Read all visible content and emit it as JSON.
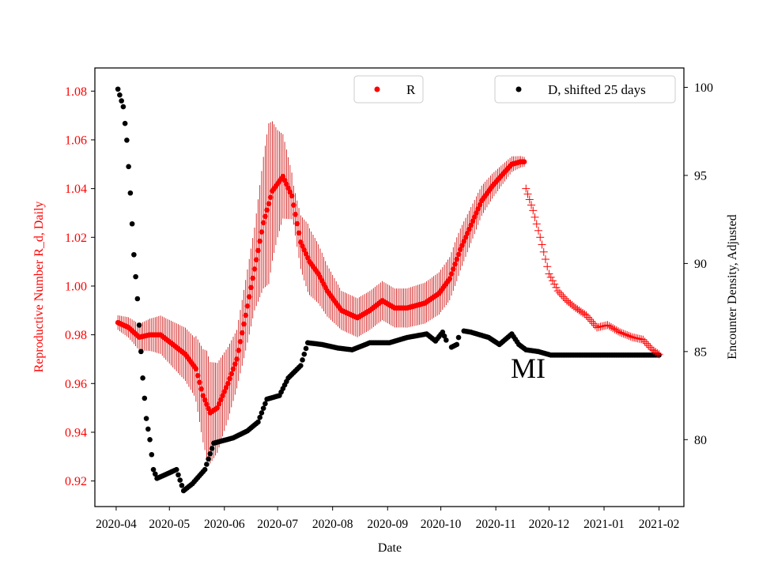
{
  "chart_data": {
    "type": "scatter",
    "xlabel": "Date",
    "ylabel_left": "Reproductive Number R_d, Daily",
    "ylabel_right": "Encounter Density, Adjusted",
    "annotation": "MI",
    "x_ticks": [
      "2020-04",
      "2020-05",
      "2020-06",
      "2020-07",
      "2020-08",
      "2020-09",
      "2020-10",
      "2020-11",
      "2020-12",
      "2021-01",
      "2021-02"
    ],
    "left_ticks": [
      "0.92",
      "0.94",
      "0.96",
      "0.98",
      "1.00",
      "1.02",
      "1.04",
      "1.06",
      "1.08"
    ],
    "right_ticks": [
      "80",
      "85",
      "90",
      "95",
      "100"
    ],
    "xlim": [
      "2020-03-20",
      "2021-02-15"
    ],
    "ylim_left": [
      0.9095,
      1.0895
    ],
    "ylim_right": [
      76.2,
      101.1
    ],
    "legend": {
      "R": "R",
      "D": "D, shifted 25 days"
    },
    "colors": {
      "R": "#ff0000",
      "R_errorbar": "#cc0000",
      "D": "#000000",
      "left_axis": "#ff0000",
      "right_axis": "#000000"
    },
    "R_anchors": [
      [
        "2020-04-02",
        0.985
      ],
      [
        "2020-04-08",
        0.983
      ],
      [
        "2020-04-14",
        0.979
      ],
      [
        "2020-04-20",
        0.98
      ],
      [
        "2020-04-26",
        0.98
      ],
      [
        "2020-05-03",
        0.976
      ],
      [
        "2020-05-10",
        0.972
      ],
      [
        "2020-05-16",
        0.966
      ],
      [
        "2020-05-20",
        0.955
      ],
      [
        "2020-05-24",
        0.948
      ],
      [
        "2020-05-28",
        0.95
      ],
      [
        "2020-06-03",
        0.96
      ],
      [
        "2020-06-08",
        0.97
      ],
      [
        "2020-06-13",
        0.988
      ],
      [
        "2020-06-18",
        1.007
      ],
      [
        "2020-06-23",
        1.026
      ],
      [
        "2020-06-28",
        1.039
      ],
      [
        "2020-07-04",
        1.045
      ],
      [
        "2020-07-09",
        1.037
      ],
      [
        "2020-07-14",
        1.018
      ],
      [
        "2020-07-19",
        1.01
      ],
      [
        "2020-07-24",
        1.005
      ],
      [
        "2020-07-29",
        0.998
      ],
      [
        "2020-08-06",
        0.99
      ],
      [
        "2020-08-15",
        0.987
      ],
      [
        "2020-08-22",
        0.99
      ],
      [
        "2020-08-29",
        0.994
      ],
      [
        "2020-09-05",
        0.991
      ],
      [
        "2020-09-12",
        0.991
      ],
      [
        "2020-09-22",
        0.993
      ],
      [
        "2020-09-30",
        0.997
      ],
      [
        "2020-10-06",
        1.003
      ],
      [
        "2020-10-12",
        1.015
      ],
      [
        "2020-10-18",
        1.025
      ],
      [
        "2020-10-24",
        1.035
      ],
      [
        "2020-10-30",
        1.041
      ],
      [
        "2020-11-05",
        1.046
      ],
      [
        "2020-11-10",
        1.05
      ],
      [
        "2020-11-15",
        1.051
      ],
      [
        "2020-11-17",
        1.051
      ]
    ],
    "R_plus_anchors": [
      [
        "2020-11-18",
        1.04
      ],
      [
        "2020-11-22",
        1.031
      ],
      [
        "2020-11-26",
        1.02
      ],
      [
        "2020-12-01",
        1.005
      ],
      [
        "2020-12-06",
        0.998
      ],
      [
        "2020-12-11",
        0.994
      ],
      [
        "2020-12-16",
        0.991
      ],
      [
        "2020-12-22",
        0.988
      ],
      [
        "2020-12-28",
        0.983
      ],
      [
        "2021-01-03",
        0.984
      ],
      [
        "2021-01-10",
        0.981
      ],
      [
        "2021-01-17",
        0.979
      ],
      [
        "2021-01-23",
        0.978
      ],
      [
        "2021-01-28",
        0.974
      ],
      [
        "2021-02-01",
        0.972
      ]
    ],
    "R_errorbar_halfwidth": [
      [
        "2020-04-02",
        0.003
      ],
      [
        "2020-04-22",
        0.007
      ],
      [
        "2020-05-15",
        0.012
      ],
      [
        "2020-05-22",
        0.022
      ],
      [
        "2020-06-08",
        0.012
      ],
      [
        "2020-06-18",
        0.017
      ],
      [
        "2020-06-26",
        0.033
      ],
      [
        "2020-07-01",
        0.022
      ],
      [
        "2020-07-10",
        0.008
      ],
      [
        "2020-07-18",
        0.014
      ],
      [
        "2020-08-06",
        0.008
      ],
      [
        "2020-09-10",
        0.008
      ],
      [
        "2020-10-10",
        0.009
      ],
      [
        "2020-10-25",
        0.006
      ],
      [
        "2020-11-17",
        0.002
      ]
    ],
    "D_anchors": [
      [
        "2020-04-02",
        99.9
      ],
      [
        "2020-04-05",
        98.9
      ],
      [
        "2020-04-07",
        97
      ],
      [
        "2020-04-09",
        94
      ],
      [
        "2020-04-11",
        90.5
      ],
      [
        "2020-04-13",
        88
      ],
      [
        "2020-04-16",
        83.5
      ],
      [
        "2020-04-18",
        81.2
      ],
      [
        "2020-04-20",
        80
      ],
      [
        "2020-04-22",
        78.3
      ],
      [
        "2020-04-24",
        77.8
      ],
      [
        "2020-05-05",
        78.3
      ],
      [
        "2020-05-09",
        77.1
      ],
      [
        "2020-05-14",
        77.5
      ],
      [
        "2020-05-21",
        78.3
      ],
      [
        "2020-05-26",
        79.8
      ],
      [
        "2020-06-06",
        80.1
      ],
      [
        "2020-06-14",
        80.5
      ],
      [
        "2020-06-20",
        81
      ],
      [
        "2020-06-25",
        82.3
      ],
      [
        "2020-07-02",
        82.5
      ],
      [
        "2020-07-07",
        83.5
      ],
      [
        "2020-07-14",
        84.2
      ],
      [
        "2020-07-18",
        85.5
      ],
      [
        "2020-07-26",
        85.4
      ],
      [
        "2020-08-04",
        85.2
      ],
      [
        "2020-08-12",
        85.1
      ],
      [
        "2020-08-22",
        85.5
      ],
      [
        "2020-09-02",
        85.5
      ],
      [
        "2020-09-12",
        85.8
      ],
      [
        "2020-09-23",
        86
      ],
      [
        "2020-09-28",
        85.6
      ],
      [
        "2020-10-02",
        86.1
      ],
      [
        "2020-10-06",
        85.2
      ],
      [
        "2020-10-10",
        85.4
      ],
      [
        "2020-10-12",
        86.2
      ],
      [
        "2020-10-18",
        86.1
      ],
      [
        "2020-10-28",
        85.8
      ],
      [
        "2020-11-03",
        85.4
      ],
      [
        "2020-11-10",
        86
      ],
      [
        "2020-11-14",
        85.4
      ],
      [
        "2020-11-18",
        85.1
      ],
      [
        "2020-11-25",
        85
      ],
      [
        "2020-12-02",
        84.8
      ],
      [
        "2021-02-01",
        84.8
      ]
    ],
    "D_gaps": [
      [
        "2020-10-05",
        "2020-10-06"
      ],
      [
        "2020-10-12",
        "2020-10-13"
      ]
    ],
    "series": [
      {
        "name": "R",
        "marker": "dot (later points '+')",
        "axis": "left"
      },
      {
        "name": "D, shifted 25 days",
        "marker": "dot",
        "axis": "right"
      }
    ],
    "legend_placement": {
      "R": "top-center",
      "D": "top-right"
    },
    "grid": false
  }
}
